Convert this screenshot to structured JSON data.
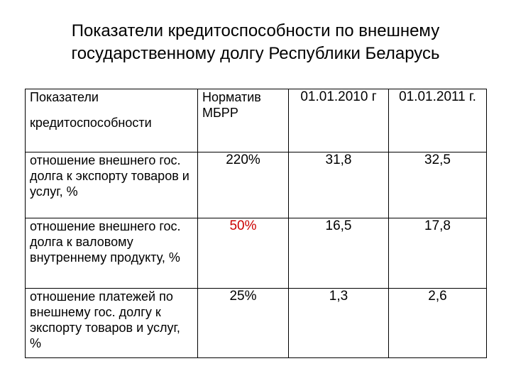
{
  "title": {
    "line1": "Показатели кредитоспособности по внешнему",
    "line2": "государственному долгу Республики Беларусь"
  },
  "header": {
    "indicator_line1": "Показатели",
    "indicator_line2": "кредитоспособности",
    "norm": "Норматив МБРР",
    "date1": "01.01.2010 г",
    "date2": "01.01.2011 г."
  },
  "rows": [
    {
      "label": "отношение внешнего гос. долга к экспорту товаров и услуг, %",
      "norm": "220%",
      "v2010": "31,8",
      "v2011": "32,5"
    },
    {
      "label": "отношение внешнего гос. долга к валовому внутреннему продукту, %",
      "norm": "50%",
      "norm_color": "#cc0000",
      "v2010": "16,5",
      "v2011": "17,8"
    },
    {
      "label": "отношение платежей по внешнему гос. долгу к экспорту товаров и услуг, %",
      "norm": "25%",
      "v2010": "1,3",
      "v2011": "2,6"
    }
  ]
}
